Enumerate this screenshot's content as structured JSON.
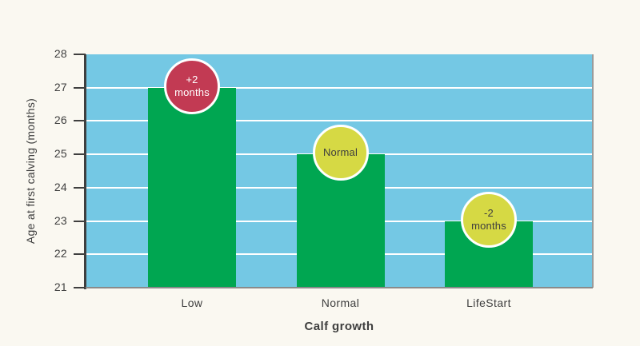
{
  "page": {
    "background": "#faf8f1"
  },
  "chart_data": {
    "type": "bar",
    "title": "",
    "xlabel": "Calf growth",
    "ylabel": "Age at first calving (months)",
    "categories": [
      "Low",
      "Normal",
      "LifeStart"
    ],
    "values": [
      27,
      25,
      23
    ],
    "ylim": [
      21,
      28
    ],
    "yticks": [
      21,
      22,
      23,
      24,
      25,
      26,
      27,
      28
    ],
    "grid": "horizontal-white-lines-every-month",
    "legend_position": "none",
    "bar_color": "#00a651",
    "plot_background": "#74c8e4",
    "gridline_color": "#ffffff",
    "axis_color": "#3f3f3f",
    "baseline_color": "#8a8a8a",
    "right_border_color": "#9b9b9b",
    "text_color": "#3e3e3e",
    "annotations": [
      {
        "target": "Low",
        "lines": [
          "+2",
          "months"
        ],
        "fill": "#c23a53",
        "text_color": "#ffffff",
        "border_color": "#ffffff"
      },
      {
        "target": "Normal",
        "lines": [
          "Normal"
        ],
        "fill": "#d6d944",
        "text_color": "#3e3e3e",
        "border_color": "#ffffff"
      },
      {
        "target": "LifeStart",
        "lines": [
          "-2",
          "months"
        ],
        "fill": "#d6d944",
        "text_color": "#3e3e3e",
        "border_color": "#ffffff"
      }
    ]
  }
}
